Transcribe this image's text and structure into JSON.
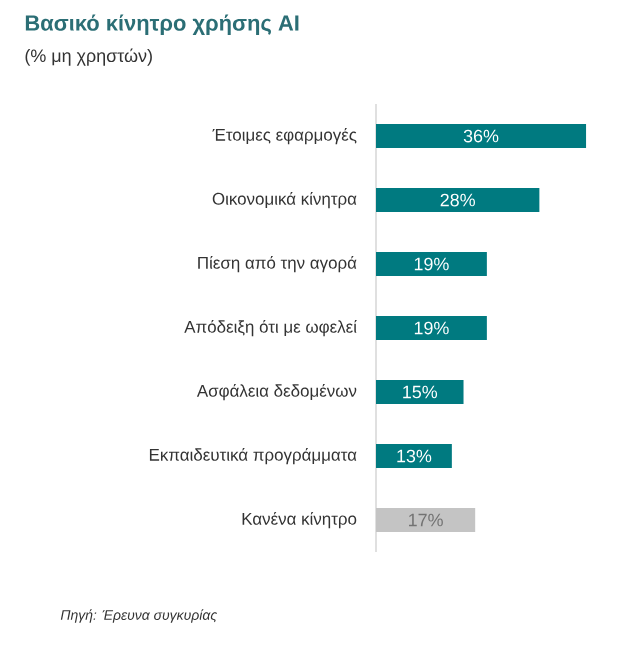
{
  "chart_data": {
    "type": "bar",
    "orientation": "horizontal",
    "title": "Βασικό κίνητρο χρήσης AI",
    "subtitle": "(% μη χρηστών)",
    "categories": [
      "Έτοιμες εφαρμογές",
      "Οικονομικά κίνητρα",
      "Πίεση από την αγορά",
      "Απόδειξη ότι με ωφελεί",
      "Ασφάλεια δεδομένων",
      "Εκπαιδευτικά προγράμματα",
      "Κανένα κίνητρο"
    ],
    "values": [
      36,
      28,
      19,
      19,
      15,
      13,
      17
    ],
    "value_labels": [
      "36%",
      "28%",
      "19%",
      "19%",
      "15%",
      "13%",
      "17%"
    ],
    "colors": [
      "#007a80",
      "#007a80",
      "#007a80",
      "#007a80",
      "#007a80",
      "#007a80",
      "#c4c4c4"
    ],
    "annotations": [
      "Πηγή: Έρευνα συγκυρίας"
    ],
    "tick_labels": "y"
  }
}
